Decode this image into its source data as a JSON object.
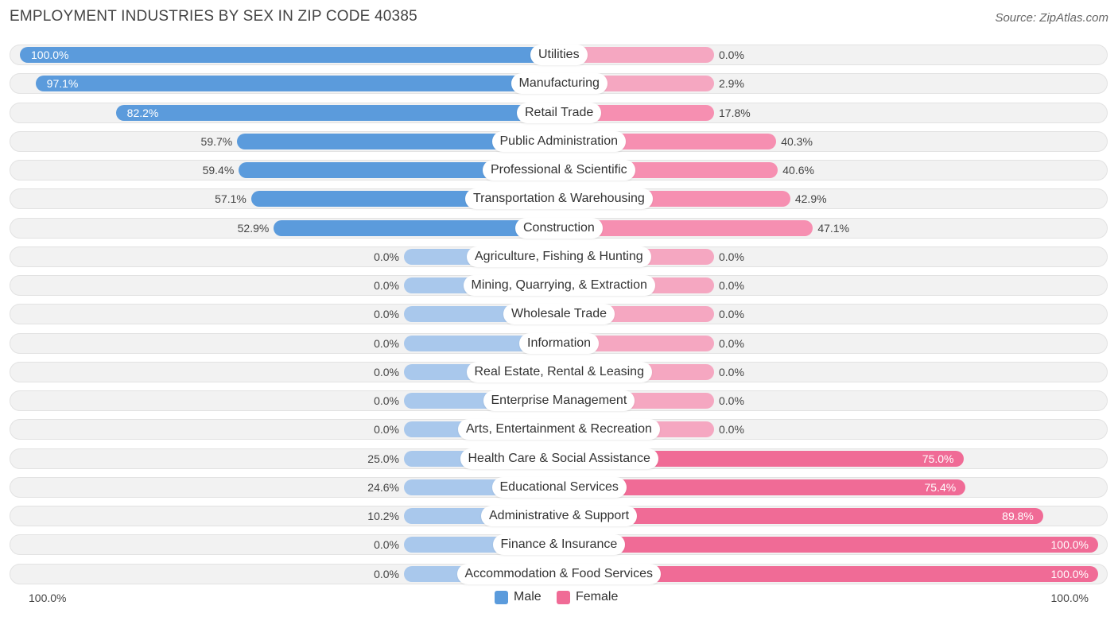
{
  "title": "EMPLOYMENT INDUSTRIES BY SEX IN ZIP CODE 40385",
  "source": "Source: ZipAtlas.com",
  "legend": {
    "male": "Male",
    "female": "Female"
  },
  "axis": {
    "left": "100.0%",
    "right": "100.0%"
  },
  "colors": {
    "male_strong": "#5b9bdc",
    "male_light": "#a9c8ec",
    "female_strong": "#f06b96",
    "female_light": "#f5a7c1",
    "row_bg": "#f2f2f2"
  },
  "chart_data": {
    "type": "bar",
    "orientation": "horizontal-diverging",
    "title": "EMPLOYMENT INDUSTRIES BY SEX IN ZIP CODE 40385",
    "xlim": [
      -100,
      100
    ],
    "categories": [
      "Utilities",
      "Manufacturing",
      "Retail Trade",
      "Public Administration",
      "Professional & Scientific",
      "Transportation & Warehousing",
      "Construction",
      "Agriculture, Fishing & Hunting",
      "Mining, Quarrying, & Extraction",
      "Wholesale Trade",
      "Information",
      "Real Estate, Rental & Leasing",
      "Enterprise Management",
      "Arts, Entertainment & Recreation",
      "Health Care & Social Assistance",
      "Educational Services",
      "Administrative & Support",
      "Finance & Insurance",
      "Accommodation & Food Services"
    ],
    "series": [
      {
        "name": "Male",
        "values": [
          100.0,
          97.1,
          82.2,
          59.7,
          59.4,
          57.1,
          52.9,
          0.0,
          0.0,
          0.0,
          0.0,
          0.0,
          0.0,
          0.0,
          25.0,
          24.6,
          10.2,
          0.0,
          0.0
        ],
        "labels": [
          "100.0%",
          "97.1%",
          "82.2%",
          "59.7%",
          "59.4%",
          "57.1%",
          "52.9%",
          "0.0%",
          "0.0%",
          "0.0%",
          "0.0%",
          "0.0%",
          "0.0%",
          "0.0%",
          "25.0%",
          "24.6%",
          "10.2%",
          "0.0%",
          "0.0%"
        ]
      },
      {
        "name": "Female",
        "values": [
          0.0,
          2.9,
          17.8,
          40.3,
          40.6,
          42.9,
          47.1,
          0.0,
          0.0,
          0.0,
          0.0,
          0.0,
          0.0,
          0.0,
          75.0,
          75.4,
          89.8,
          100.0,
          100.0
        ],
        "labels": [
          "0.0%",
          "2.9%",
          "17.8%",
          "40.3%",
          "40.6%",
          "42.9%",
          "47.1%",
          "0.0%",
          "0.0%",
          "0.0%",
          "0.0%",
          "0.0%",
          "0.0%",
          "0.0%",
          "75.0%",
          "75.4%",
          "89.8%",
          "100.0%",
          "100.0%"
        ]
      }
    ]
  }
}
